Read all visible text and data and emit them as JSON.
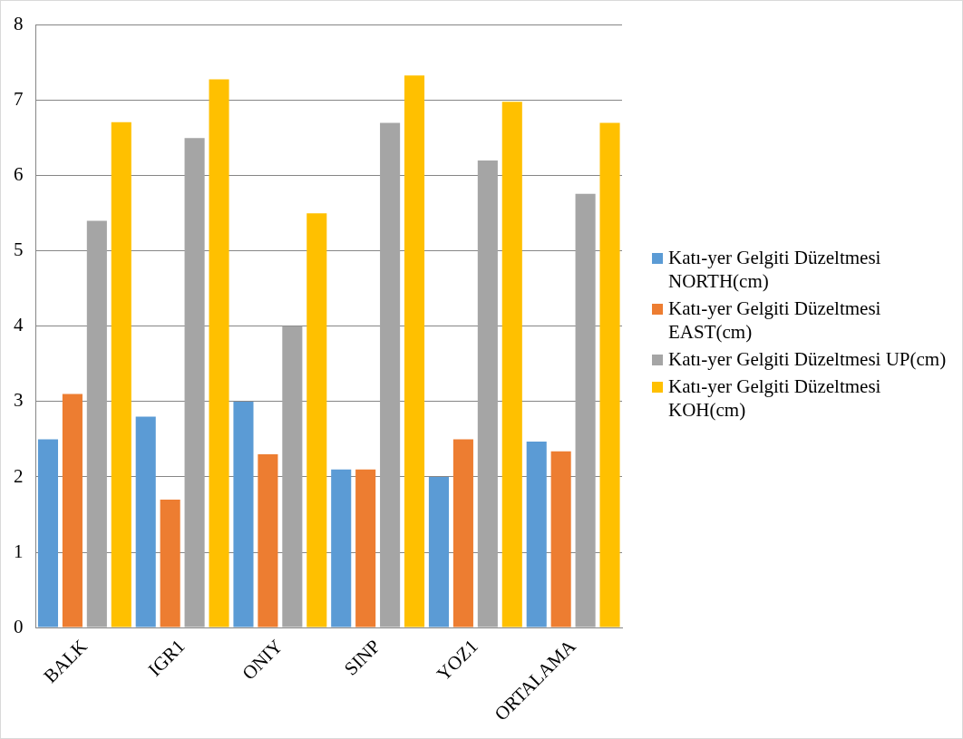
{
  "chart_data": {
    "type": "bar",
    "categories": [
      "BALK",
      "IGR1",
      "ONIY",
      "SINP",
      "YOZ1",
      "ORTALAMA"
    ],
    "series": [
      {
        "name": "Katı-yer Gelgiti Düzeltmesi NORTH(cm)",
        "color": "#5b9bd5",
        "values": [
          2.5,
          2.8,
          3.0,
          2.1,
          2.0,
          2.47
        ]
      },
      {
        "name": "Katı-yer Gelgiti Düzeltmesi EAST(cm)",
        "color": "#ed7d31",
        "values": [
          3.1,
          1.7,
          2.3,
          2.1,
          2.5,
          2.34
        ]
      },
      {
        "name": "Katı-yer Gelgiti Düzeltmesi UP(cm)",
        "color": "#a5a5a5",
        "values": [
          5.4,
          6.5,
          4.0,
          6.7,
          6.2,
          5.76
        ]
      },
      {
        "name": "Katı-yer Gelgiti Düzeltmesi KOH(cm)",
        "color": "#ffc000",
        "values": [
          6.71,
          7.28,
          5.5,
          7.33,
          6.98,
          6.7
        ]
      }
    ],
    "ylim": [
      0,
      8
    ],
    "yticks": [
      0,
      1,
      2,
      3,
      4,
      5,
      6,
      7,
      8
    ],
    "grid": "y",
    "legend": "right"
  }
}
